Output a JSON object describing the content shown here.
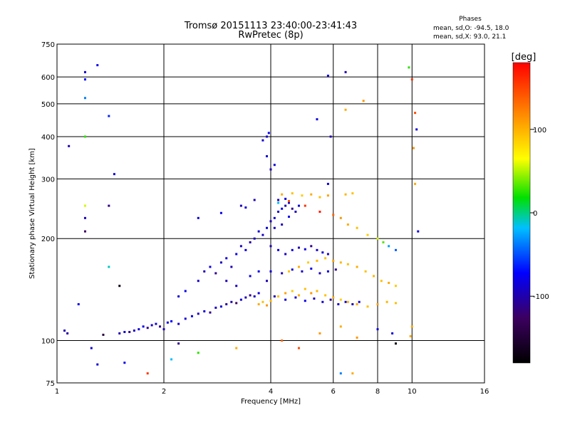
{
  "chart_data": {
    "type": "scatter",
    "title": "Tromsø 20151113 23:40:00-23:41:43",
    "subtitle": "RwPretec (8p)",
    "xlabel": "Frequency [MHz]",
    "ylabel": "Stationary phase Virtual Height [km]",
    "x_scale": "log",
    "y_scale": "log",
    "xlim": [
      1,
      16
    ],
    "ylim": [
      75,
      750
    ],
    "x_ticks": [
      1,
      2,
      4,
      6,
      8,
      10,
      16
    ],
    "y_ticks": [
      75,
      100,
      200,
      300,
      400,
      500,
      600,
      750
    ],
    "grid": true,
    "phase_info": {
      "heading": "Phases",
      "line_o": "mean, sd,O: -94.5, 18.0",
      "line_x": "mean, sd,X: 93.0, 21.1"
    },
    "colorbar": {
      "label": "[deg]",
      "ticks": [
        100,
        0,
        -100
      ],
      "range": [
        -180,
        180
      ]
    },
    "points": [
      {
        "x": 1.05,
        "y": 107,
        "phase": -110
      },
      {
        "x": 1.07,
        "y": 105,
        "phase": -115
      },
      {
        "x": 1.15,
        "y": 128,
        "phase": -95
      },
      {
        "x": 1.2,
        "y": 230,
        "phase": -105
      },
      {
        "x": 1.2,
        "y": 210,
        "phase": -130
      },
      {
        "x": 1.2,
        "y": 250,
        "phase": 60
      },
      {
        "x": 1.2,
        "y": 400,
        "phase": 20
      },
      {
        "x": 1.2,
        "y": 520,
        "phase": -50
      },
      {
        "x": 1.2,
        "y": 590,
        "phase": -90
      },
      {
        "x": 1.2,
        "y": 620,
        "phase": -100
      },
      {
        "x": 1.3,
        "y": 650,
        "phase": -95
      },
      {
        "x": 1.08,
        "y": 375,
        "phase": -110
      },
      {
        "x": 1.4,
        "y": 460,
        "phase": -80
      },
      {
        "x": 1.45,
        "y": 310,
        "phase": -100
      },
      {
        "x": 1.4,
        "y": 250,
        "phase": -120
      },
      {
        "x": 1.4,
        "y": 165,
        "phase": -20
      },
      {
        "x": 1.5,
        "y": 145,
        "phase": -170
      },
      {
        "x": 1.25,
        "y": 95,
        "phase": -100
      },
      {
        "x": 1.3,
        "y": 85,
        "phase": -100
      },
      {
        "x": 1.55,
        "y": 86,
        "phase": -95
      },
      {
        "x": 1.8,
        "y": 80,
        "phase": 160
      },
      {
        "x": 2.1,
        "y": 88,
        "phase": -30
      },
      {
        "x": 1.35,
        "y": 104,
        "phase": -150
      },
      {
        "x": 1.5,
        "y": 105,
        "phase": -110
      },
      {
        "x": 1.55,
        "y": 106,
        "phase": -100
      },
      {
        "x": 1.6,
        "y": 106,
        "phase": -120
      },
      {
        "x": 1.65,
        "y": 107,
        "phase": -105
      },
      {
        "x": 1.7,
        "y": 108,
        "phase": -100
      },
      {
        "x": 1.75,
        "y": 110,
        "phase": -95
      },
      {
        "x": 1.8,
        "y": 109,
        "phase": -120
      },
      {
        "x": 1.85,
        "y": 111,
        "phase": -105
      },
      {
        "x": 1.9,
        "y": 112,
        "phase": -100
      },
      {
        "x": 1.95,
        "y": 110,
        "phase": -115
      },
      {
        "x": 2.0,
        "y": 108,
        "phase": -110
      },
      {
        "x": 2.05,
        "y": 113,
        "phase": -100
      },
      {
        "x": 2.1,
        "y": 114,
        "phase": -90
      },
      {
        "x": 2.2,
        "y": 112,
        "phase": -105
      },
      {
        "x": 2.3,
        "y": 116,
        "phase": -100
      },
      {
        "x": 2.4,
        "y": 118,
        "phase": -95
      },
      {
        "x": 2.5,
        "y": 120,
        "phase": -110
      },
      {
        "x": 2.6,
        "y": 122,
        "phase": -100
      },
      {
        "x": 2.7,
        "y": 121,
        "phase": -120
      },
      {
        "x": 2.8,
        "y": 125,
        "phase": -105
      },
      {
        "x": 2.9,
        "y": 126,
        "phase": -100
      },
      {
        "x": 3.0,
        "y": 128,
        "phase": -115
      },
      {
        "x": 3.1,
        "y": 130,
        "phase": -110
      },
      {
        "x": 3.2,
        "y": 129,
        "phase": -130
      },
      {
        "x": 3.3,
        "y": 132,
        "phase": -100
      },
      {
        "x": 3.4,
        "y": 134,
        "phase": -110
      },
      {
        "x": 3.5,
        "y": 136,
        "phase": -120
      },
      {
        "x": 3.6,
        "y": 135,
        "phase": -105
      },
      {
        "x": 3.7,
        "y": 138,
        "phase": -100
      },
      {
        "x": 2.2,
        "y": 135,
        "phase": -100
      },
      {
        "x": 2.3,
        "y": 140,
        "phase": -95
      },
      {
        "x": 2.5,
        "y": 150,
        "phase": -105
      },
      {
        "x": 2.6,
        "y": 160,
        "phase": -110
      },
      {
        "x": 2.7,
        "y": 165,
        "phase": -100
      },
      {
        "x": 2.8,
        "y": 158,
        "phase": -120
      },
      {
        "x": 2.9,
        "y": 170,
        "phase": -105
      },
      {
        "x": 3.0,
        "y": 175,
        "phase": -100
      },
      {
        "x": 3.1,
        "y": 165,
        "phase": -110
      },
      {
        "x": 3.2,
        "y": 180,
        "phase": -95
      },
      {
        "x": 3.3,
        "y": 190,
        "phase": -105
      },
      {
        "x": 3.4,
        "y": 185,
        "phase": -100
      },
      {
        "x": 3.5,
        "y": 195,
        "phase": -115
      },
      {
        "x": 3.6,
        "y": 200,
        "phase": -110
      },
      {
        "x": 3.7,
        "y": 210,
        "phase": -100
      },
      {
        "x": 3.8,
        "y": 205,
        "phase": -105
      },
      {
        "x": 3.9,
        "y": 215,
        "phase": -95
      },
      {
        "x": 3.3,
        "y": 250,
        "phase": -105
      },
      {
        "x": 3.4,
        "y": 247,
        "phase": -100
      },
      {
        "x": 3.6,
        "y": 260,
        "phase": -110
      },
      {
        "x": 2.9,
        "y": 238,
        "phase": -95
      },
      {
        "x": 2.5,
        "y": 230,
        "phase": -100
      },
      {
        "x": 3.0,
        "y": 150,
        "phase": -110
      },
      {
        "x": 3.2,
        "y": 145,
        "phase": -105
      },
      {
        "x": 3.5,
        "y": 155,
        "phase": -100
      },
      {
        "x": 3.7,
        "y": 160,
        "phase": -95
      },
      {
        "x": 3.9,
        "y": 150,
        "phase": -110
      },
      {
        "x": 3.8,
        "y": 390,
        "phase": -100
      },
      {
        "x": 3.9,
        "y": 400,
        "phase": -105
      },
      {
        "x": 3.95,
        "y": 410,
        "phase": -95
      },
      {
        "x": 3.9,
        "y": 350,
        "phase": -100
      },
      {
        "x": 4.0,
        "y": 320,
        "phase": -110
      },
      {
        "x": 4.1,
        "y": 330,
        "phase": -100
      },
      {
        "x": 4.0,
        "y": 225,
        "phase": -110
      },
      {
        "x": 4.1,
        "y": 230,
        "phase": -100
      },
      {
        "x": 4.2,
        "y": 240,
        "phase": -105
      },
      {
        "x": 4.3,
        "y": 245,
        "phase": -95
      },
      {
        "x": 4.4,
        "y": 250,
        "phase": -110
      },
      {
        "x": 4.5,
        "y": 255,
        "phase": -100
      },
      {
        "x": 4.6,
        "y": 245,
        "phase": -120
      },
      {
        "x": 4.7,
        "y": 240,
        "phase": -105
      },
      {
        "x": 4.8,
        "y": 250,
        "phase": -100
      },
      {
        "x": 4.2,
        "y": 260,
        "phase": -110
      },
      {
        "x": 4.4,
        "y": 262,
        "phase": -100
      },
      {
        "x": 4.1,
        "y": 215,
        "phase": -105
      },
      {
        "x": 4.3,
        "y": 220,
        "phase": -110
      },
      {
        "x": 4.5,
        "y": 232,
        "phase": -95
      },
      {
        "x": 4.0,
        "y": 190,
        "phase": -110
      },
      {
        "x": 4.2,
        "y": 185,
        "phase": -100
      },
      {
        "x": 4.4,
        "y": 180,
        "phase": -105
      },
      {
        "x": 4.6,
        "y": 185,
        "phase": -95
      },
      {
        "x": 4.8,
        "y": 188,
        "phase": -110
      },
      {
        "x": 5.0,
        "y": 186,
        "phase": -100
      },
      {
        "x": 5.2,
        "y": 190,
        "phase": -120
      },
      {
        "x": 5.4,
        "y": 185,
        "phase": -105
      },
      {
        "x": 5.6,
        "y": 182,
        "phase": -100
      },
      {
        "x": 5.8,
        "y": 180,
        "phase": -110
      },
      {
        "x": 4.0,
        "y": 160,
        "phase": -100
      },
      {
        "x": 4.3,
        "y": 158,
        "phase": -110
      },
      {
        "x": 4.6,
        "y": 162,
        "phase": -100
      },
      {
        "x": 4.9,
        "y": 160,
        "phase": -105
      },
      {
        "x": 5.2,
        "y": 163,
        "phase": -95
      },
      {
        "x": 5.5,
        "y": 158,
        "phase": -110
      },
      {
        "x": 5.8,
        "y": 160,
        "phase": -100
      },
      {
        "x": 6.1,
        "y": 162,
        "phase": -120
      },
      {
        "x": 4.1,
        "y": 135,
        "phase": -110
      },
      {
        "x": 4.4,
        "y": 132,
        "phase": -100
      },
      {
        "x": 4.7,
        "y": 134,
        "phase": -105
      },
      {
        "x": 5.0,
        "y": 131,
        "phase": -95
      },
      {
        "x": 5.3,
        "y": 133,
        "phase": -110
      },
      {
        "x": 5.6,
        "y": 130,
        "phase": -100
      },
      {
        "x": 5.9,
        "y": 132,
        "phase": -120
      },
      {
        "x": 6.2,
        "y": 128,
        "phase": -105
      },
      {
        "x": 6.5,
        "y": 130,
        "phase": -100
      },
      {
        "x": 6.8,
        "y": 128,
        "phase": -110
      },
      {
        "x": 7.1,
        "y": 130,
        "phase": -100
      },
      {
        "x": 3.7,
        "y": 128,
        "phase": 110
      },
      {
        "x": 3.8,
        "y": 130,
        "phase": 100
      },
      {
        "x": 3.9,
        "y": 127,
        "phase": 120
      },
      {
        "x": 4.0,
        "y": 131,
        "phase": 105
      },
      {
        "x": 4.2,
        "y": 135,
        "phase": 100
      },
      {
        "x": 4.4,
        "y": 138,
        "phase": 115
      },
      {
        "x": 4.6,
        "y": 140,
        "phase": 95
      },
      {
        "x": 4.8,
        "y": 136,
        "phase": 110
      },
      {
        "x": 5.0,
        "y": 142,
        "phase": 100
      },
      {
        "x": 5.2,
        "y": 138,
        "phase": 120
      },
      {
        "x": 5.4,
        "y": 140,
        "phase": 105
      },
      {
        "x": 5.7,
        "y": 136,
        "phase": 100
      },
      {
        "x": 6.0,
        "y": 134,
        "phase": 110
      },
      {
        "x": 6.3,
        "y": 132,
        "phase": 95
      },
      {
        "x": 6.6,
        "y": 130,
        "phase": 105
      },
      {
        "x": 7.0,
        "y": 128,
        "phase": 110
      },
      {
        "x": 7.5,
        "y": 126,
        "phase": 100
      },
      {
        "x": 8.0,
        "y": 128,
        "phase": 115
      },
      {
        "x": 8.5,
        "y": 130,
        "phase": 105
      },
      {
        "x": 9.0,
        "y": 129,
        "phase": 100
      },
      {
        "x": 4.5,
        "y": 160,
        "phase": 100
      },
      {
        "x": 4.8,
        "y": 165,
        "phase": 110
      },
      {
        "x": 5.1,
        "y": 170,
        "phase": 95
      },
      {
        "x": 5.4,
        "y": 172,
        "phase": 105
      },
      {
        "x": 5.7,
        "y": 175,
        "phase": 100
      },
      {
        "x": 6.0,
        "y": 172,
        "phase": 115
      },
      {
        "x": 6.3,
        "y": 170,
        "phase": 105
      },
      {
        "x": 6.6,
        "y": 168,
        "phase": 100
      },
      {
        "x": 7.0,
        "y": 165,
        "phase": 110
      },
      {
        "x": 7.4,
        "y": 160,
        "phase": 100
      },
      {
        "x": 7.8,
        "y": 155,
        "phase": 105
      },
      {
        "x": 8.2,
        "y": 150,
        "phase": 100
      },
      {
        "x": 8.6,
        "y": 148,
        "phase": 110
      },
      {
        "x": 9.0,
        "y": 145,
        "phase": 95
      },
      {
        "x": 4.3,
        "y": 270,
        "phase": 110
      },
      {
        "x": 4.6,
        "y": 272,
        "phase": 100
      },
      {
        "x": 4.9,
        "y": 268,
        "phase": 95
      },
      {
        "x": 5.2,
        "y": 270,
        "phase": 110
      },
      {
        "x": 5.5,
        "y": 265,
        "phase": 100
      },
      {
        "x": 5.8,
        "y": 268,
        "phase": 115
      },
      {
        "x": 6.5,
        "y": 270,
        "phase": 105
      },
      {
        "x": 6.8,
        "y": 272,
        "phase": 100
      },
      {
        "x": 4.2,
        "y": 255,
        "phase": -30
      },
      {
        "x": 4.5,
        "y": 258,
        "phase": 150
      },
      {
        "x": 5.0,
        "y": 250,
        "phase": 160
      },
      {
        "x": 5.5,
        "y": 240,
        "phase": 170
      },
      {
        "x": 6.0,
        "y": 235,
        "phase": 140
      },
      {
        "x": 6.3,
        "y": 230,
        "phase": 120
      },
      {
        "x": 6.6,
        "y": 220,
        "phase": 110
      },
      {
        "x": 7.0,
        "y": 215,
        "phase": 100
      },
      {
        "x": 7.5,
        "y": 205,
        "phase": 95
      },
      {
        "x": 8.0,
        "y": 200,
        "phase": 60
      },
      {
        "x": 8.3,
        "y": 195,
        "phase": 30
      },
      {
        "x": 8.6,
        "y": 190,
        "phase": -40
      },
      {
        "x": 9.0,
        "y": 185,
        "phase": -60
      },
      {
        "x": 5.8,
        "y": 290,
        "phase": -100
      },
      {
        "x": 5.9,
        "y": 400,
        "phase": -110
      },
      {
        "x": 5.8,
        "y": 605,
        "phase": -100
      },
      {
        "x": 6.5,
        "y": 620,
        "phase": -110
      },
      {
        "x": 6.5,
        "y": 480,
        "phase": 110
      },
      {
        "x": 7.3,
        "y": 510,
        "phase": 120
      },
      {
        "x": 5.4,
        "y": 450,
        "phase": -100
      },
      {
        "x": 6.3,
        "y": 80,
        "phase": -50
      },
      {
        "x": 6.8,
        "y": 80,
        "phase": 110
      },
      {
        "x": 9.8,
        "y": 640,
        "phase": 20
      },
      {
        "x": 10.0,
        "y": 590,
        "phase": 160
      },
      {
        "x": 10.2,
        "y": 470,
        "phase": 150
      },
      {
        "x": 10.1,
        "y": 370,
        "phase": 120
      },
      {
        "x": 10.2,
        "y": 290,
        "phase": 110
      },
      {
        "x": 10.3,
        "y": 420,
        "phase": -100
      },
      {
        "x": 10.4,
        "y": 210,
        "phase": -100
      },
      {
        "x": 10.0,
        "y": 110,
        "phase": 110
      },
      {
        "x": 9.9,
        "y": 103,
        "phase": 110
      },
      {
        "x": 9.0,
        "y": 98,
        "phase": -170
      },
      {
        "x": 8.8,
        "y": 105,
        "phase": -100
      },
      {
        "x": 8.0,
        "y": 108,
        "phase": -100
      },
      {
        "x": 6.3,
        "y": 110,
        "phase": 110
      },
      {
        "x": 7.0,
        "y": 102,
        "phase": 120
      },
      {
        "x": 4.3,
        "y": 100,
        "phase": 140
      },
      {
        "x": 4.8,
        "y": 95,
        "phase": 150
      },
      {
        "x": 5.5,
        "y": 105,
        "phase": 120
      },
      {
        "x": 2.5,
        "y": 92,
        "phase": 20
      },
      {
        "x": 2.2,
        "y": 98,
        "phase": -120
      },
      {
        "x": 3.2,
        "y": 95,
        "phase": 110
      }
    ]
  }
}
